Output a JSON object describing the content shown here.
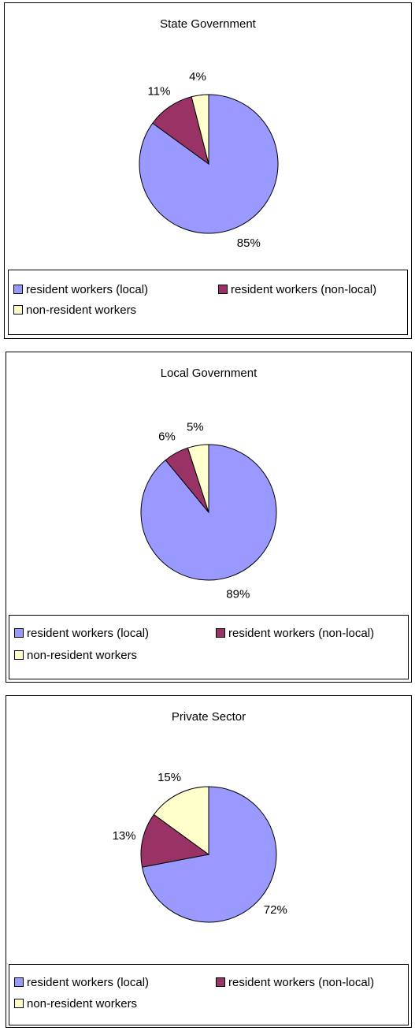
{
  "chart_data": [
    {
      "type": "pie",
      "title": "State Government",
      "categories": [
        "resident workers (local)",
        "resident workers (non-local)",
        "non-resident workers"
      ],
      "values": [
        85,
        11,
        4
      ],
      "labels": [
        "85%",
        "11%",
        "4%"
      ],
      "colors": [
        "#9999FF",
        "#993366",
        "#FFFFCC"
      ],
      "legend": {
        "position": "bottom"
      }
    },
    {
      "type": "pie",
      "title": "Local Government",
      "categories": [
        "resident workers (local)",
        "resident workers (non-local)",
        "non-resident workers"
      ],
      "values": [
        89,
        6,
        5
      ],
      "labels": [
        "89%",
        "6%",
        "5%"
      ],
      "colors": [
        "#9999FF",
        "#993366",
        "#FFFFCC"
      ],
      "legend": {
        "position": "bottom"
      }
    },
    {
      "type": "pie",
      "title": "Private Sector",
      "categories": [
        "resident workers (local)",
        "resident workers (non-local)",
        "non-resident workers"
      ],
      "values": [
        72,
        13,
        15
      ],
      "labels": [
        "72%",
        "13%",
        "15%"
      ],
      "colors": [
        "#9999FF",
        "#993366",
        "#FFFFCC"
      ],
      "legend": {
        "position": "bottom"
      }
    }
  ]
}
